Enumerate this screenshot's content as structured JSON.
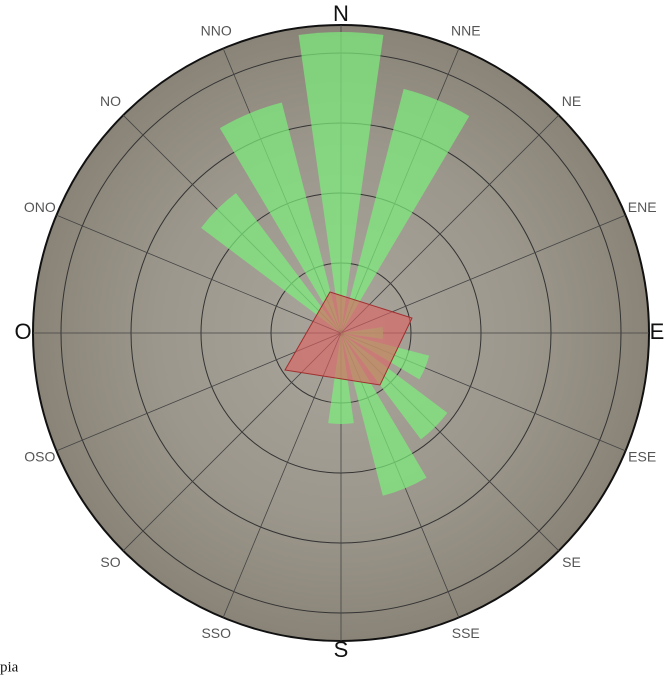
{
  "chart_data": {
    "type": "windrose",
    "categories": [
      "N",
      "NNE",
      "NE",
      "ENE",
      "E",
      "ESE",
      "SE",
      "SSE",
      "S",
      "SSO",
      "SO",
      "OSO",
      "O",
      "ONO",
      "NO",
      "NNO"
    ],
    "values": [
      4.3,
      3.6,
      0,
      0,
      0.6,
      1.3,
      1.9,
      2.4,
      1.3,
      0,
      0,
      0,
      0,
      0,
      2.5,
      3.4
    ],
    "color": "#7cf07c",
    "rlim": [
      0,
      4.4
    ],
    "rticks": [
      1,
      2,
      3,
      4
    ],
    "grid": true,
    "caption": "pia"
  }
}
